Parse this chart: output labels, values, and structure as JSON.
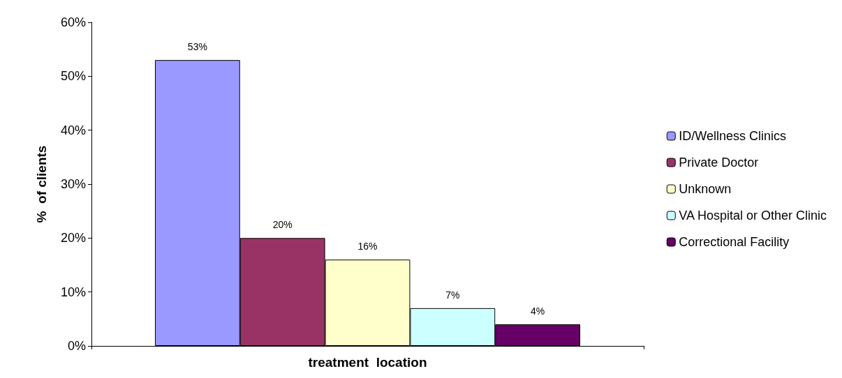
{
  "chart_data": {
    "type": "bar",
    "xlabel": "treatment  location",
    "ylabel": "%  of clients",
    "categories": [
      null
    ],
    "series": [
      {
        "name": "ID/Wellness Clinics",
        "color": "#9999ff",
        "values": [
          53
        ],
        "value_labels": [
          "53%"
        ]
      },
      {
        "name": "Private Doctor",
        "color": "#993366",
        "values": [
          20
        ],
        "value_labels": [
          "20%"
        ]
      },
      {
        "name": "Unknown",
        "color": "#ffffcc",
        "values": [
          16
        ],
        "value_labels": [
          "16%"
        ]
      },
      {
        "name": "VA Hospital or Other Clinic",
        "color": "#ccffff",
        "values": [
          7
        ],
        "value_labels": [
          "7%"
        ]
      },
      {
        "name": "Correctional Facility",
        "color": "#660066",
        "values": [
          4
        ],
        "value_labels": [
          "4%"
        ]
      }
    ],
    "ylim": [
      0,
      60
    ],
    "yticks": [
      {
        "value": 0,
        "label": "0%"
      },
      {
        "value": 10,
        "label": "10%"
      },
      {
        "value": 20,
        "label": "20%"
      },
      {
        "value": 30,
        "label": "30%"
      },
      {
        "value": 40,
        "label": "40%"
      },
      {
        "value": 50,
        "label": "50%"
      },
      {
        "value": 60,
        "label": "60%"
      }
    ],
    "legend": "right",
    "grid": false
  }
}
